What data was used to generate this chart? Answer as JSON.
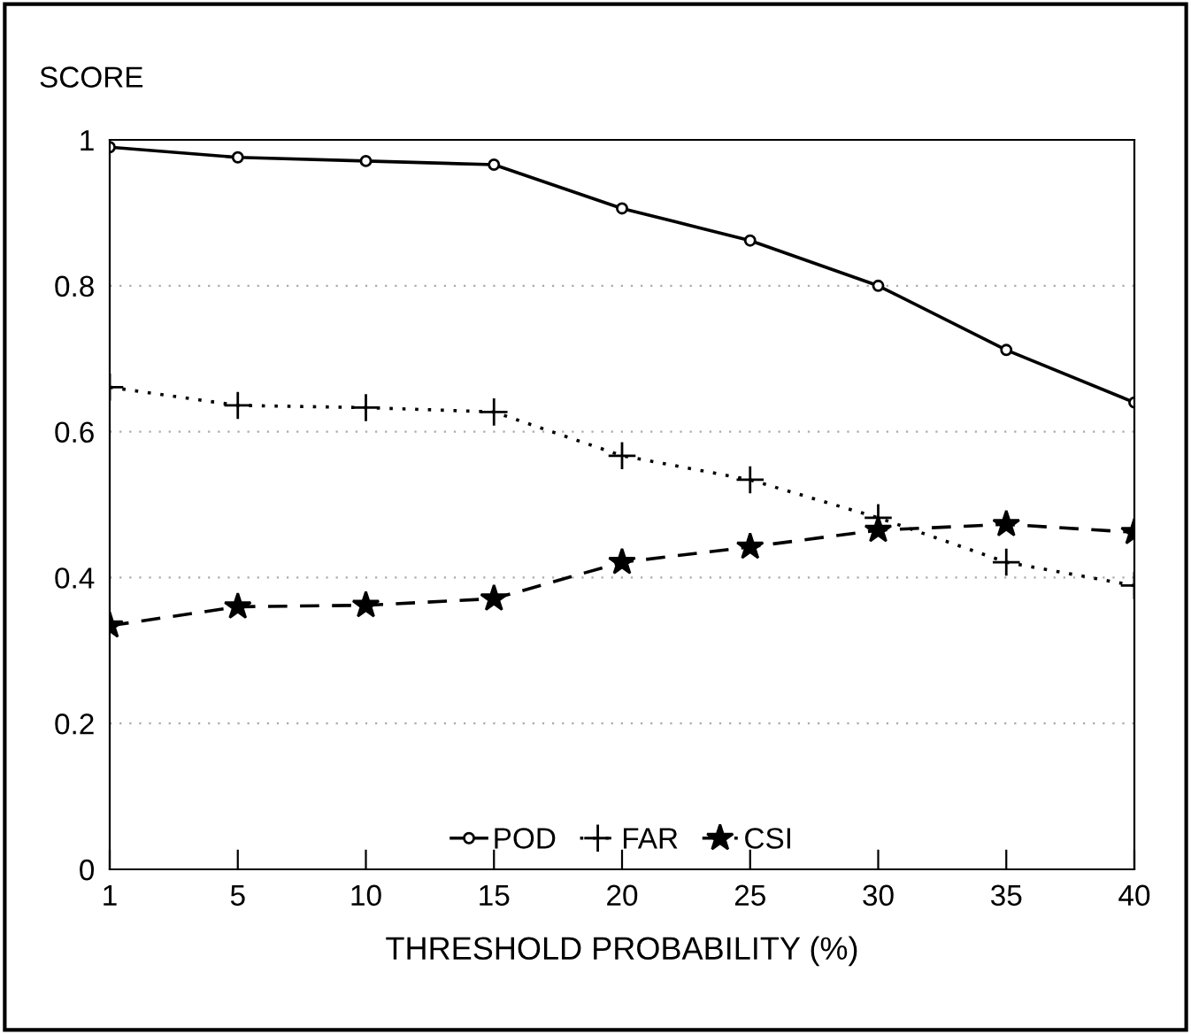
{
  "chart_data": {
    "type": "line",
    "ylabel": "SCORE",
    "xlabel": "THRESHOLD PROBABILITY (%)",
    "categories": [
      "1",
      "5",
      "10",
      "15",
      "20",
      "25",
      "30",
      "35",
      "40"
    ],
    "ylim": [
      0,
      1
    ],
    "yticks": [
      0,
      0.2,
      0.4,
      0.6,
      0.8,
      1
    ],
    "grid": "y",
    "legend": "bottom",
    "series": [
      {
        "name": "POD",
        "color": "#000000",
        "marker": "circle",
        "line_style": "solid",
        "values": [
          0.99,
          0.976,
          0.971,
          0.966,
          0.906,
          0.862,
          0.8,
          0.712,
          0.64
        ]
      },
      {
        "name": "FAR",
        "color": "#000000",
        "marker": "cross",
        "line_style": "dotted",
        "values": [
          0.661,
          0.636,
          0.633,
          0.627,
          0.567,
          0.534,
          0.482,
          0.421,
          0.389
        ]
      },
      {
        "name": "CSI",
        "color": "#000000",
        "marker": "star",
        "line_style": "dashed",
        "values": [
          0.334,
          0.36,
          0.362,
          0.371,
          0.421,
          0.442,
          0.465,
          0.473,
          0.462
        ]
      }
    ]
  }
}
